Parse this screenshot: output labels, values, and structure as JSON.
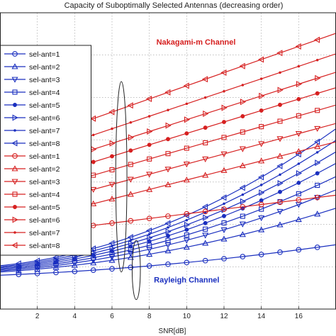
{
  "chart_data": {
    "type": "line",
    "title": "Capacity of Suboptimally Selected Antennas (decreasing order)",
    "xlabel": "SNR[dB]",
    "ylabel": "",
    "xlim": [
      0,
      18
    ],
    "ylim": [
      0,
      28
    ],
    "xticks": [
      2,
      4,
      6,
      8,
      10,
      12,
      14,
      16
    ],
    "grid": true,
    "legend_position": "left",
    "colors": {
      "nakagami": "#d62020",
      "rayleigh": "#1a2fbf"
    },
    "annotations": [
      {
        "text": "Nakagami-m Channel",
        "color": "#d62020",
        "x": 10.5,
        "y": 25.0
      },
      {
        "text": "Rayleigh Channel",
        "color": "#1a2fbf",
        "x": 10.0,
        "y": 2.5
      }
    ],
    "ellipses": [
      {
        "group": "nakagami",
        "cx": 6.5,
        "cy": 12.5,
        "rx": 0.3,
        "ry": 9.0
      },
      {
        "group": "rayleigh",
        "cx": 7.3,
        "cy": 3.7,
        "rx": 0.22,
        "ry": 2.8
      }
    ],
    "x": [
      0,
      1,
      2,
      3,
      4,
      5,
      6,
      7,
      8,
      9,
      10,
      11,
      12,
      13,
      14,
      15,
      16,
      17,
      18
    ],
    "series": [
      {
        "name": "sel-ant=1",
        "group": "rayleigh",
        "marker": "o",
        "y0": 3.2,
        "slope": 0.07,
        "curve": 0.005
      },
      {
        "name": "sel-ant=2",
        "group": "rayleigh",
        "marker": "^",
        "y0": 3.5,
        "slope": 0.11,
        "curve": 0.0125
      },
      {
        "name": "sel-ant=3",
        "group": "rayleigh",
        "marker": "v",
        "y0": 3.6,
        "slope": 0.12,
        "curve": 0.017
      },
      {
        "name": "sel-ant=4",
        "group": "rayleigh",
        "marker": "s",
        "y0": 3.7,
        "slope": 0.13,
        "curve": 0.02
      },
      {
        "name": "sel-ant=5",
        "group": "rayleigh",
        "marker": "*",
        "y0": 3.8,
        "slope": 0.14,
        "curve": 0.023
      },
      {
        "name": "sel-ant=6",
        "group": "rayleigh",
        "marker": ">",
        "y0": 3.9,
        "slope": 0.15,
        "curve": 0.0255
      },
      {
        "name": "sel-ant=7",
        "group": "rayleigh",
        "marker": ".",
        "y0": 4.0,
        "slope": 0.16,
        "curve": 0.028
      },
      {
        "name": "sel-ant=8",
        "group": "rayleigh",
        "marker": "<",
        "y0": 4.1,
        "slope": 0.17,
        "curve": 0.0305
      },
      {
        "name": "sel-ant=1",
        "group": "nakagami",
        "marker": "o",
        "y0": 6.8,
        "slope": 0.22,
        "curve": 0.0
      },
      {
        "name": "sel-ant=2",
        "group": "nakagami",
        "marker": "^",
        "y0": 7.7,
        "slope": 0.45,
        "curve": 0.0
      },
      {
        "name": "sel-ant=3",
        "group": "nakagami",
        "marker": "v",
        "y0": 8.9,
        "slope": 0.48,
        "curve": 0.0
      },
      {
        "name": "sel-ant=4",
        "group": "nakagami",
        "marker": "s",
        "y0": 10.1,
        "slope": 0.51,
        "curve": 0.0
      },
      {
        "name": "sel-ant=5",
        "group": "nakagami",
        "marker": "*",
        "y0": 11.2,
        "slope": 0.54,
        "curve": 0.0
      },
      {
        "name": "sel-ant=6",
        "group": "nakagami",
        "marker": ">",
        "y0": 12.3,
        "slope": 0.56,
        "curve": 0.0
      },
      {
        "name": "sel-ant=7",
        "group": "nakagami",
        "marker": ".",
        "y0": 13.5,
        "slope": 0.59,
        "curve": 0.0
      },
      {
        "name": "sel-ant=8",
        "group": "nakagami",
        "marker": "<",
        "y0": 14.9,
        "slope": 0.62,
        "curve": 0.0
      }
    ]
  }
}
